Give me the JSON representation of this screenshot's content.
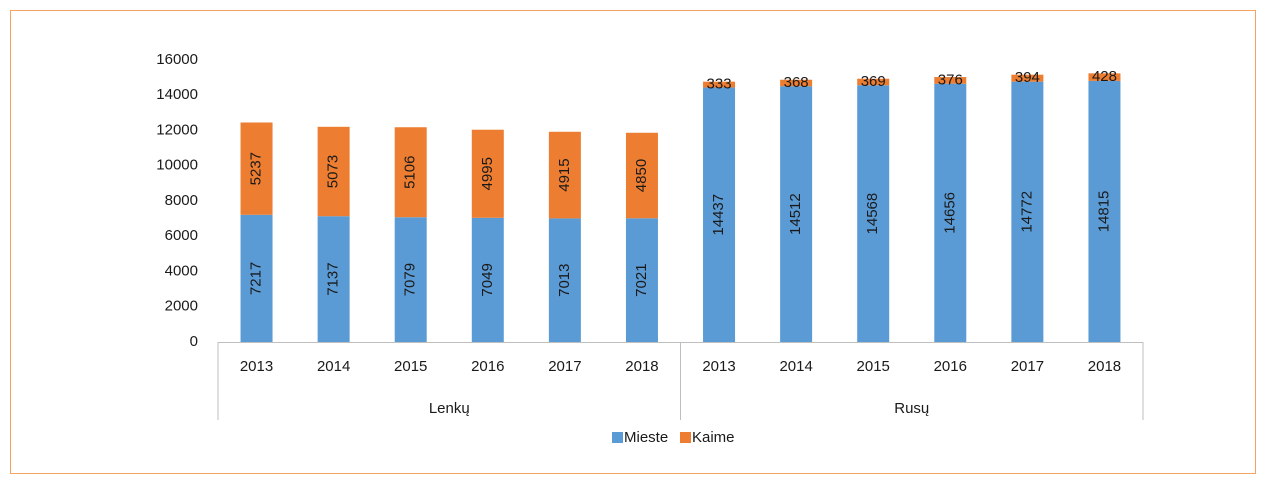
{
  "chart_data": {
    "type": "bar",
    "stacked": true,
    "categories": [
      "2013",
      "2014",
      "2015",
      "2016",
      "2017",
      "2018",
      "2013",
      "2014",
      "2015",
      "2016",
      "2017",
      "2018"
    ],
    "groups": [
      "Lenkų",
      "Rusų"
    ],
    "series": [
      {
        "name": "Mieste",
        "color": "#5b9bd5",
        "values": [
          7217,
          7137,
          7079,
          7049,
          7013,
          7021,
          14437,
          14512,
          14568,
          14656,
          14772,
          14815
        ]
      },
      {
        "name": "Kaime",
        "color": "#ed7d31",
        "values": [
          5237,
          5073,
          5106,
          4995,
          4915,
          4850,
          333,
          368,
          369,
          376,
          394,
          428
        ]
      }
    ],
    "ylim": [
      0,
      16000
    ],
    "yticks": [
      0,
      2000,
      4000,
      6000,
      8000,
      10000,
      12000,
      14000,
      16000
    ],
    "grid": false,
    "legend": "bottom"
  }
}
